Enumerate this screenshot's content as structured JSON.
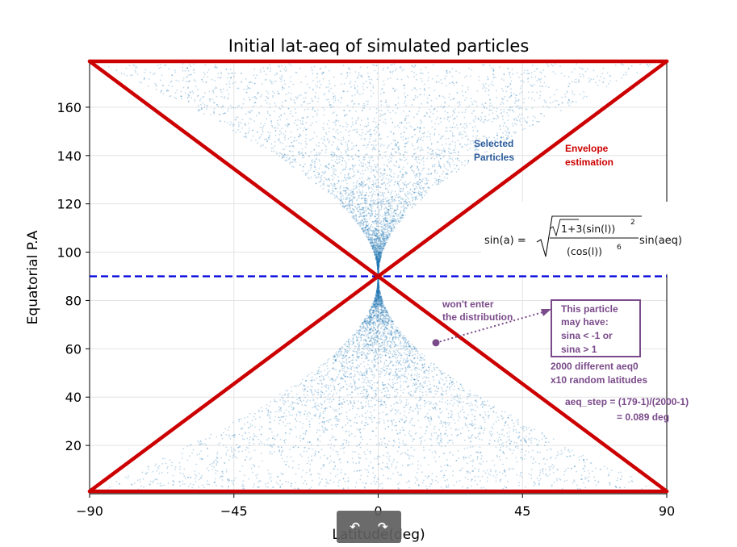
{
  "chart_data": {
    "type": "scatter",
    "title": "Initial lat-aeq of simulated particles",
    "xlabel": "Latitude(deg)",
    "ylabel": "Equatorial P.A",
    "xlim": [
      -90,
      90
    ],
    "ylim": [
      0,
      179
    ],
    "xticks": [
      -90,
      -45,
      0,
      45,
      90
    ],
    "yticks": [
      20,
      40,
      60,
      80,
      100,
      120,
      140,
      160
    ],
    "grid": true,
    "point_color": "#1f77b4",
    "envelope": {
      "color": "#cc0000",
      "lines": [
        {
          "x": [
            -90,
            90
          ],
          "y": [
            179,
            1
          ]
        },
        {
          "x": [
            -90,
            90
          ],
          "y": [
            1,
            179
          ]
        },
        {
          "x": [
            -90,
            90
          ],
          "y": [
            179,
            179
          ]
        },
        {
          "x": [
            -90,
            90
          ],
          "y": [
            1,
            1
          ]
        }
      ]
    },
    "reference_line": {
      "y": 90,
      "color": "#0000dd",
      "style": "dashed"
    },
    "outlier_point": {
      "x": 18,
      "y": 62.5,
      "color": "#7a4a8a"
    },
    "annotations": {
      "selected": [
        "Selected",
        "Particles"
      ],
      "envelope": [
        "Envelope",
        "estimation"
      ],
      "formula": {
        "lhs": "sin(a) =",
        "num": "1+3(sin(l))",
        "den": "(cos(l))",
        "tail": "sin(aeq)"
      },
      "wont_enter": [
        "won't enter",
        "the distribution"
      ],
      "box": [
        "This particle",
        "may have:",
        "sina < -1 or",
        "sina > 1"
      ],
      "counts": [
        "2000 different aeq0",
        "x10 random latitudes"
      ],
      "step": [
        "aeq_step = (179-1)/(2000-1)",
        "= 0.089   deg"
      ]
    },
    "colors": {
      "selected_text": "#2a5a9a",
      "envelope_text": "#cc0000",
      "purple": "#7a4a8a"
    }
  },
  "nav": {
    "back": "↶",
    "forward": "↷"
  }
}
